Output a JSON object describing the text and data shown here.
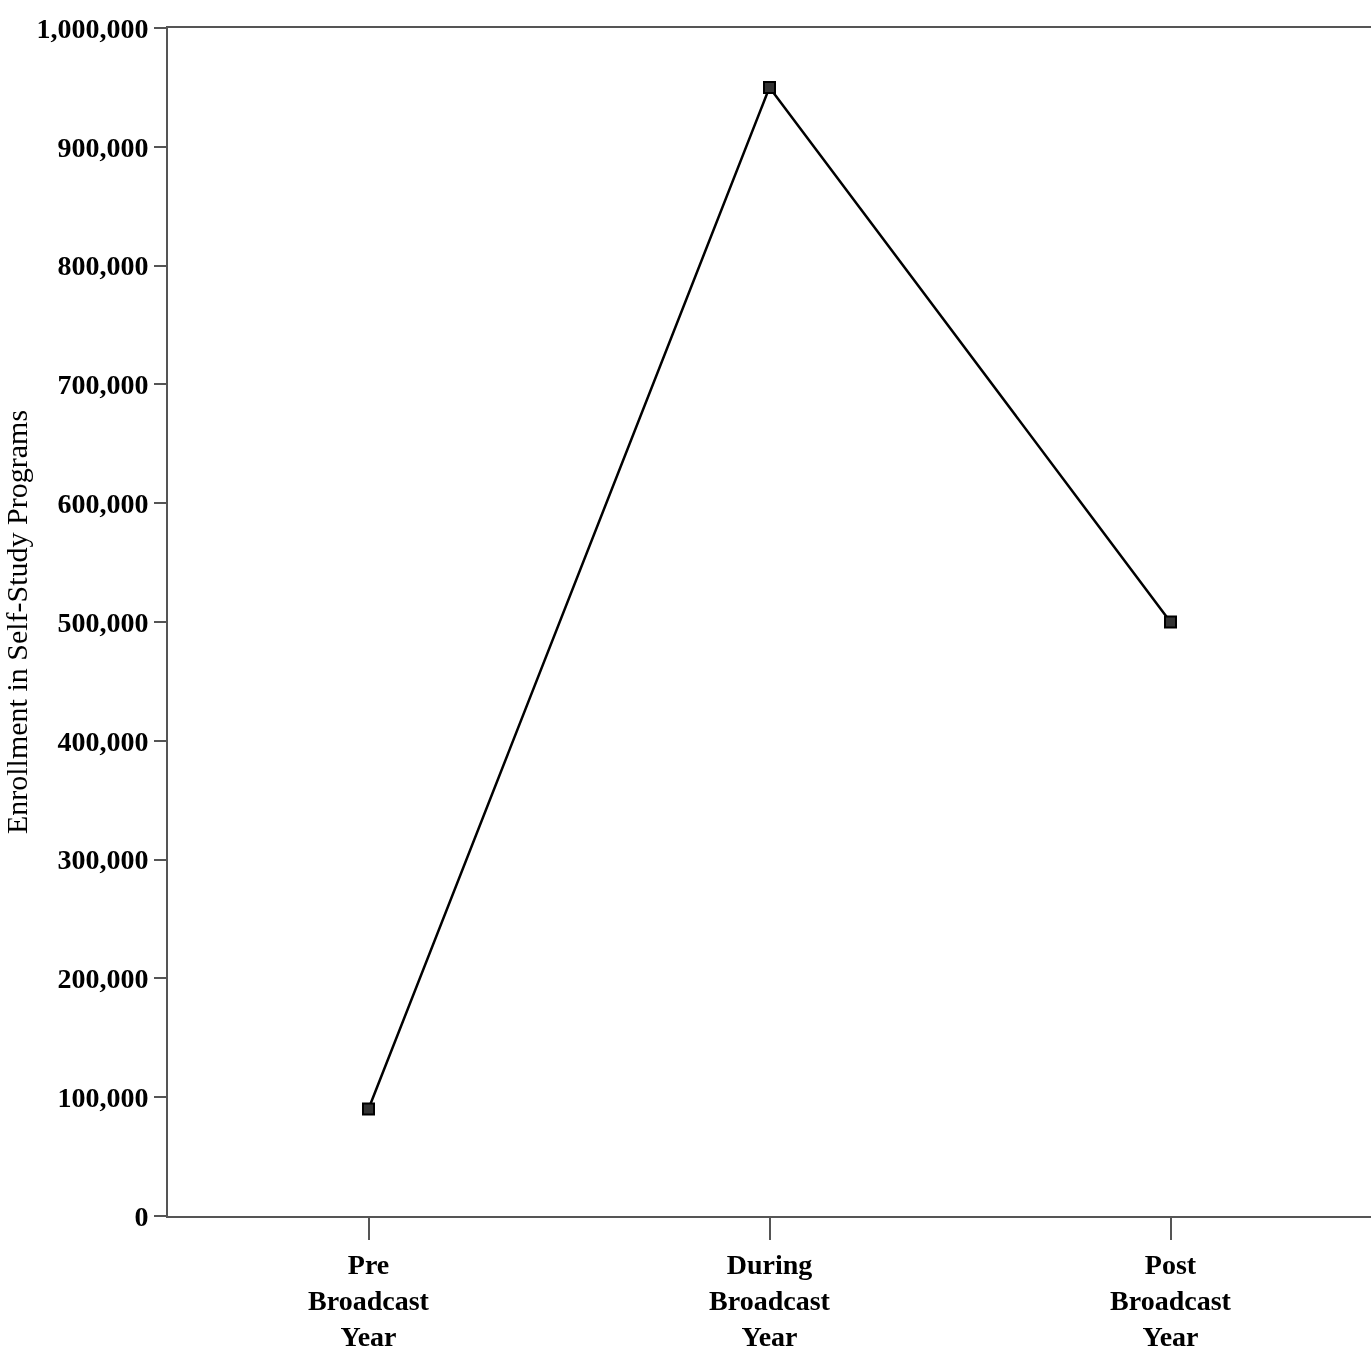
{
  "chart_data": {
    "type": "line",
    "ylabel": "Enrollment in Self-Study Programs",
    "categories": [
      "Pre\nBroadcast\nYear",
      "During\nBroadcast\nYear",
      "Post\nBroadcast\nYear"
    ],
    "series": [
      {
        "color": "#000000",
        "values": [
          90000,
          950000,
          500000
        ]
      }
    ],
    "ylim": [
      0,
      1000000
    ],
    "yticks": [
      {
        "value": 0,
        "label": "0"
      },
      {
        "value": 100000,
        "label": "100,000"
      },
      {
        "value": 200000,
        "label": "200,000"
      },
      {
        "value": 300000,
        "label": "300,000"
      },
      {
        "value": 400000,
        "label": "400,000"
      },
      {
        "value": 500000,
        "label": "500,000"
      },
      {
        "value": 600000,
        "label": "600,000"
      },
      {
        "value": 700000,
        "label": "700,000"
      },
      {
        "value": 800000,
        "label": "800,000"
      },
      {
        "value": 900000,
        "label": "900,000"
      },
      {
        "value": 1000000,
        "label": "1,000,000"
      }
    ],
    "marker": "square",
    "line_style": "solid"
  }
}
